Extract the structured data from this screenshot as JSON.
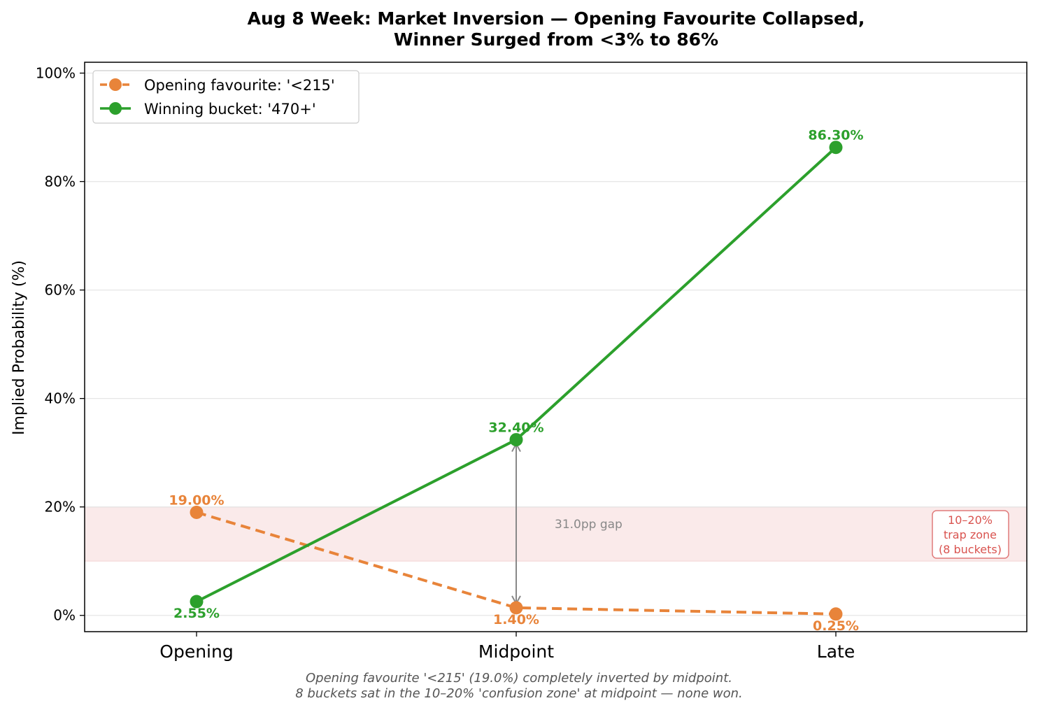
{
  "chart_data": {
    "type": "line",
    "title_lines": [
      "Aug 8 Week: Market Inversion — Opening Favourite Collapsed,",
      "Winner Surged from <3% to 86%"
    ],
    "xlabel": "",
    "ylabel": "Implied Probability (%)",
    "categories": [
      "Opening",
      "Midpoint",
      "Late"
    ],
    "ylim": [
      -3,
      102
    ],
    "yticks": [
      0,
      20,
      40,
      60,
      80,
      100
    ],
    "ytick_labels": [
      "0%",
      "20%",
      "40%",
      "60%",
      "80%",
      "100%"
    ],
    "grid": "horizontal",
    "legend_position": "top-left",
    "series": [
      {
        "name": "Opening favourite: '<215'",
        "color": "#e8843a",
        "style": "dashed",
        "values": [
          19.0,
          1.4,
          0.25
        ],
        "labels": [
          "19.00%",
          "1.40%",
          "0.25%"
        ]
      },
      {
        "name": "Winning bucket: '470+'",
        "color": "#2ca02c",
        "style": "solid",
        "values": [
          2.55,
          32.4,
          86.3
        ],
        "labels": [
          "2.55%",
          "32.40%",
          "86.30%"
        ]
      }
    ],
    "band": {
      "from": 10,
      "to": 20,
      "color": "#d9534f",
      "label_lines": [
        "10–20%",
        "trap zone",
        "(8 buckets)"
      ]
    },
    "gap_annotation": {
      "category": "Midpoint",
      "from": 1.4,
      "to": 32.4,
      "label": "31.0pp gap"
    },
    "caption_lines": [
      "Opening favourite '<215' (19.0%) completely inverted by midpoint.",
      "8 buckets sat in the 10–20% 'confusion zone' at midpoint — none won."
    ]
  }
}
